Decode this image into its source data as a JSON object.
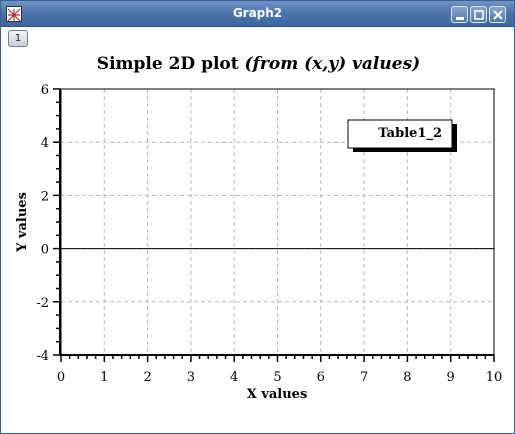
{
  "window": {
    "title": "Graph2",
    "icons": {
      "app": "graph-app-icon",
      "minimize": "minimize-icon",
      "maximize": "maximize-icon",
      "close": "close-icon"
    }
  },
  "layer_button": "1",
  "plot": {
    "title_main": "Simple 2D plot ",
    "title_italic": "(from (x,y) values)",
    "legend_label": "Table1_2",
    "xlabel": "X values",
    "ylabel": "Y values"
  },
  "chart_data": {
    "type": "line",
    "title": "Simple 2D plot (from (x,y) values)",
    "xlabel": "X values",
    "ylabel": "Y values",
    "xlim": [
      0,
      10
    ],
    "ylim": [
      -4,
      6
    ],
    "x_ticks": [
      "0",
      "1",
      "2",
      "3",
      "4",
      "5",
      "6",
      "7",
      "8",
      "9",
      "10"
    ],
    "y_ticks": [
      "6",
      "4",
      "2",
      "0",
      "-2",
      "-4"
    ],
    "y_tick_values": [
      6,
      4,
      2,
      0,
      -2,
      -4
    ],
    "grid": true,
    "legend": "top-right",
    "series": [
      {
        "name": "Table1_2",
        "x": [],
        "y": []
      }
    ]
  }
}
